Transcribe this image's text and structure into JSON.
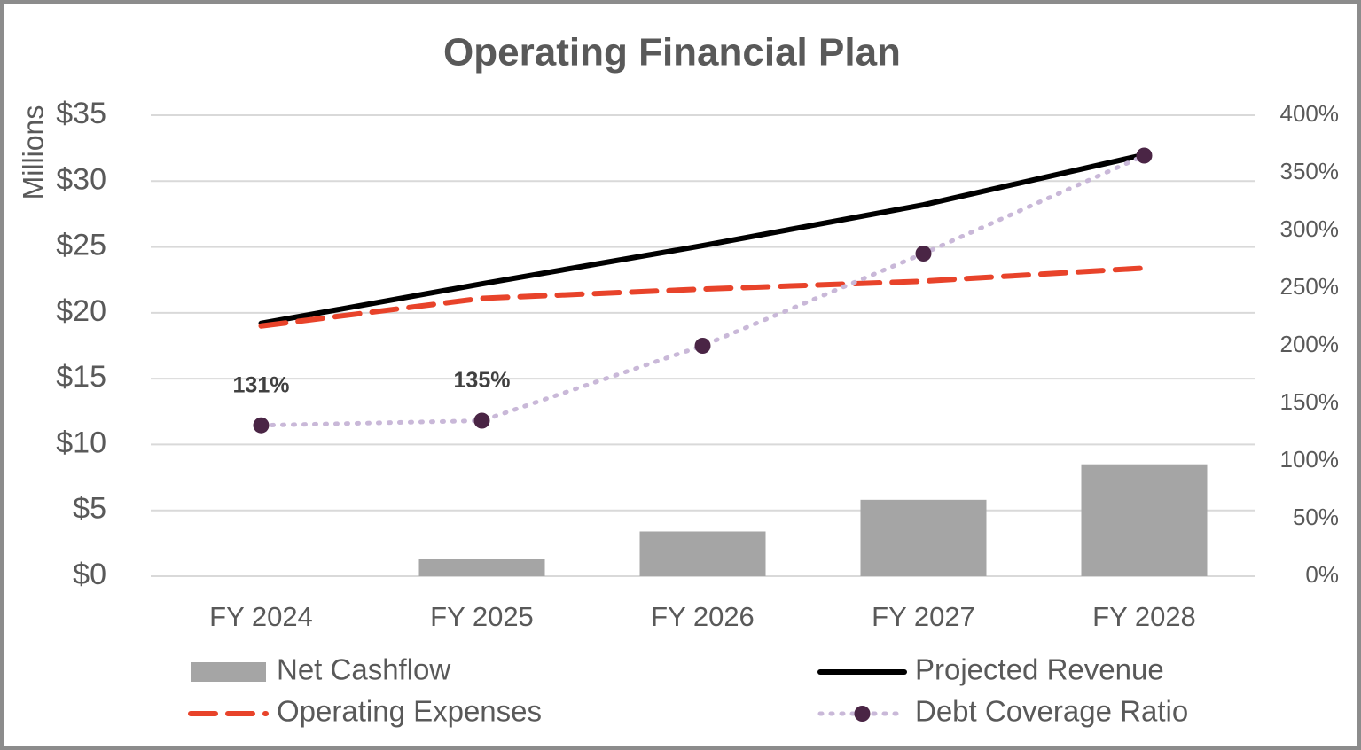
{
  "chart_data": {
    "type": "combo",
    "title": "Operating Financial Plan",
    "y_label": "Millions",
    "categories": [
      "FY 2024",
      "FY 2025",
      "FY 2026",
      "FY 2027",
      "FY 2028"
    ],
    "series": [
      {
        "name": "Net Cashflow",
        "type": "bar",
        "color": "#a5a5a5",
        "values": [
          0,
          1.3,
          3.4,
          5.8,
          8.5
        ]
      },
      {
        "name": "Projected Revenue",
        "type": "line",
        "color": "#000000",
        "line_style": "solid",
        "values": [
          19.2,
          22.2,
          25.1,
          28.2,
          32.0
        ]
      },
      {
        "name": "Operating Expenses",
        "type": "line",
        "color": "#e8432a",
        "line_style": "dashed",
        "values": [
          19.0,
          21.1,
          21.8,
          22.4,
          23.4
        ]
      },
      {
        "name": "Debt Coverage Ratio",
        "type": "line",
        "axis": "y2",
        "color": "#c9b8d8",
        "marker_color": "#4a2545",
        "line_style": "dotted",
        "values": [
          131,
          135,
          200,
          280,
          365
        ],
        "value_labels": [
          "131%",
          "135%",
          null,
          null,
          null
        ]
      }
    ],
    "ylim": [
      0,
      35
    ],
    "yticks": [
      {
        "value": 0,
        "label": "$0"
      },
      {
        "value": 5,
        "label": "$5"
      },
      {
        "value": 10,
        "label": "$10"
      },
      {
        "value": 15,
        "label": "$15"
      },
      {
        "value": 20,
        "label": "$20"
      },
      {
        "value": 25,
        "label": "$25"
      },
      {
        "value": 30,
        "label": "$30"
      },
      {
        "value": 35,
        "label": "$35"
      }
    ],
    "y2lim": [
      0,
      400
    ],
    "y2ticks": [
      {
        "value": 0,
        "label": "0%"
      },
      {
        "value": 50,
        "label": "50%"
      },
      {
        "value": 100,
        "label": "100%"
      },
      {
        "value": 150,
        "label": "150%"
      },
      {
        "value": 200,
        "label": "200%"
      },
      {
        "value": 250,
        "label": "250%"
      },
      {
        "value": 300,
        "label": "300%"
      },
      {
        "value": 350,
        "label": "350%"
      },
      {
        "value": 400,
        "label": "400%"
      }
    ],
    "grid": true,
    "legend": "bottom"
  }
}
